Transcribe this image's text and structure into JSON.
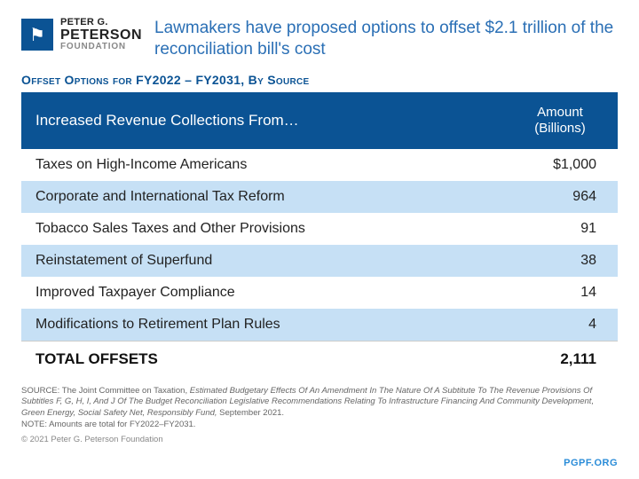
{
  "logo": {
    "line1": "PETER G.",
    "line2": "PETERSON",
    "line3": "FOUNDATION",
    "icon_glyph": "⚑",
    "icon_bg": "#0b5394"
  },
  "title": "Lawmakers have proposed options to offset $2.1 trillion of the reconciliation bill's cost",
  "subtitle": "Offset Options for FY2022 – FY2031, By Source",
  "table": {
    "header_bg": "#0b5394",
    "header_fg": "#ffffff",
    "row_alt_bg": "#c6e0f5",
    "columns": {
      "label": "Increased Revenue Collections From…",
      "amount": "Amount (Billions)"
    },
    "rows": [
      {
        "label": "Taxes on High-Income Americans",
        "value": "$1,000",
        "alt": false
      },
      {
        "label": "Corporate and International Tax Reform",
        "value": "964",
        "alt": true
      },
      {
        "label": "Tobacco Sales Taxes and Other Provisions",
        "value": "91",
        "alt": false
      },
      {
        "label": "Reinstatement of Superfund",
        "value": "38",
        "alt": true
      },
      {
        "label": "Improved Taxpayer Compliance",
        "value": "14",
        "alt": false
      },
      {
        "label": "Modifications to Retirement Plan Rules",
        "value": "4",
        "alt": true
      }
    ],
    "total": {
      "label": "TOTAL OFFSETS",
      "value": "2,111"
    }
  },
  "footer": {
    "source_label": "SOURCE: ",
    "source_text": "The Joint Committee on Taxation, ",
    "source_italic": "Estimated Budgetary Effects Of An Amendment In The Nature Of A Subtitute To The Revenue Provisions Of Subtitles F, G, H, I, And J Of The Budget Reconciliation Legislative Recommendations Relating To Infrastructure Financing And Community Development, Green Energy, Social Safety Net, Responsibly Fund,",
    "source_tail": " September 2021.",
    "note_label": "NOTE: ",
    "note_text": "Amounts are total for FY2022–FY2031.",
    "copyright": "© 2021 Peter G. Peterson Foundation",
    "brand_link": "PGPF.ORG"
  },
  "colors": {
    "title": "#2a6fb5",
    "subtitle": "#0b5394",
    "brand_link": "#2a8cd8"
  }
}
